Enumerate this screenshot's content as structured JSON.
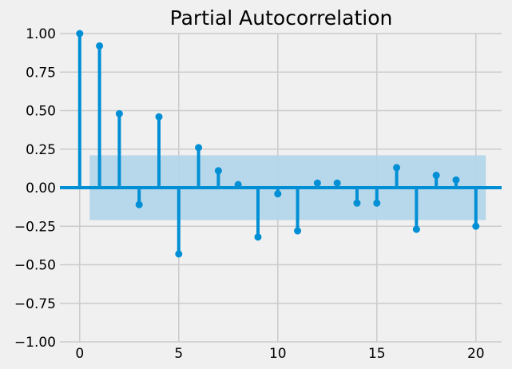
{
  "chart_data": {
    "type": "stem",
    "title": "Partial Autocorrelation",
    "xlabel": "",
    "ylabel": "",
    "xlim": [
      -1,
      21.3
    ],
    "ylim": [
      -1.0,
      1.0
    ],
    "x_ticks": [
      0,
      5,
      10,
      15,
      20
    ],
    "y_ticks": [
      1.0,
      0.75,
      0.5,
      0.25,
      0.0,
      -0.25,
      -0.5,
      -0.75,
      -1.0
    ],
    "x_tick_labels": [
      "0",
      "5",
      "10",
      "15",
      "20"
    ],
    "y_tick_labels": [
      "1.00",
      "0.75",
      "0.50",
      "0.25",
      "0.00",
      "−0.25",
      "−0.50",
      "−0.75",
      "−1.00"
    ],
    "lags": [
      0,
      1,
      2,
      3,
      4,
      5,
      6,
      7,
      8,
      9,
      10,
      11,
      12,
      13,
      14,
      15,
      16,
      17,
      18,
      19,
      20
    ],
    "values": [
      1.0,
      0.92,
      0.48,
      -0.11,
      0.46,
      -0.43,
      0.26,
      0.11,
      0.02,
      -0.32,
      -0.04,
      -0.28,
      0.03,
      0.03,
      -0.1,
      -0.1,
      0.13,
      -0.27,
      0.08,
      0.05,
      -0.25
    ],
    "confidence_interval": {
      "lower": -0.21,
      "upper": 0.21,
      "x_start": 0.5,
      "x_end": 20.5
    },
    "grid": true,
    "colors": {
      "background": "#f0f0f0",
      "grid": "#cbcbcb",
      "stem": "#008fd5",
      "confidence_band": "#b3d5ea",
      "text": "#000000"
    }
  }
}
